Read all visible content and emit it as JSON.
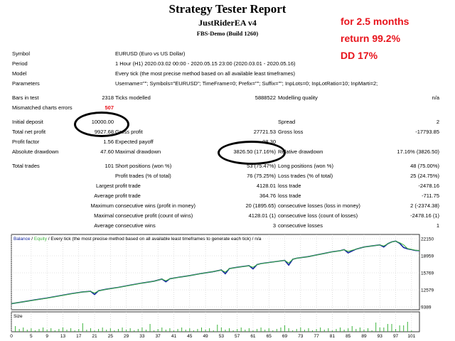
{
  "header": {
    "title": "Strategy Tester Report",
    "ea_name": "JustRiderEA v4",
    "server": "FBS-Demo (Build 1260)"
  },
  "annotation": {
    "line1": "for 2.5 months",
    "line2": "return 99.2%",
    "line3": "DD 17%"
  },
  "info": [
    {
      "label": "Symbol",
      "value": "EURUSD (Euro vs US Dollar)"
    },
    {
      "label": "Period",
      "value": "1 Hour (H1) 2020.03.02 00:00 - 2020.05.15 23:00 (2020.03.01 - 2020.05.16)"
    },
    {
      "label": "Model",
      "value": "Every tick (the most precise method based on all available least timeframes)"
    },
    {
      "label": "Parameters",
      "value": "Username=\"\"; Symbols=\"EURUSD\"; TimeFrame=0; Prefix=\"\"; Suffix=\"\"; InpLots=0; InpLotRatio=10; InpMarti=2;"
    }
  ],
  "bars_row": {
    "bars_label": "Bars in test",
    "bars_value": "2318",
    "ticks_label": "Ticks modelled",
    "ticks_value": "5888522",
    "quality_label": "Modelling quality",
    "quality_value": "n/a"
  },
  "mismatch": {
    "label": "Mismatched charts errors",
    "value": "507",
    "color": "#e8141c"
  },
  "rows": [
    {
      "l1": "Initial deposit",
      "v1": "10000.00",
      "l2": "",
      "v2": "",
      "l3": "Spread",
      "v3": "2"
    },
    {
      "l1": "Total net profit",
      "v1": "9927.68",
      "l2": "Gross profit",
      "v2": "27721.53",
      "l3": "Gross loss",
      "v3": "-17793.85"
    },
    {
      "l1": "Profit factor",
      "v1": "1.56",
      "l2": "Expected payoff",
      "v2": "98.30",
      "l3": "",
      "v3": ""
    },
    {
      "l1": "Absolute drawdown",
      "v1": "47.60",
      "l2": "Maximal drawdown",
      "v2": "3826.50 (17.16%)",
      "l3": "Relative drawdown",
      "v3": "17.16% (3826.50)"
    }
  ],
  "trades": {
    "total_label": "Total trades",
    "total_value": "101",
    "short_label": "Short positions (won %)",
    "short_value": "53 (75.47%)",
    "long_label": "Long positions (won %)",
    "long_value": "48 (75.00%)",
    "profit_trades_label": "Profit trades (% of total)",
    "profit_trades_value": "76 (75.25%)",
    "loss_trades_label": "Loss trades (% of total)",
    "loss_trades_value": "25 (24.75%)"
  },
  "stats": [
    {
      "prefix": "Largest",
      "l1": "profit trade",
      "v1": "4128.01",
      "l2": "loss trade",
      "v2": "-2478.16"
    },
    {
      "prefix": "Average",
      "l1": "profit trade",
      "v1": "364.76",
      "l2": "loss trade",
      "v2": "-711.75"
    },
    {
      "prefix": "Maximum",
      "l1": "consecutive wins (profit in money)",
      "v1": "20 (1895.65)",
      "l2": "consecutive losses (loss in money)",
      "v2": "2 (-2374.38)"
    },
    {
      "prefix": "Maximal",
      "l1": "consecutive profit (count of wins)",
      "v1": "4128.01 (1)",
      "l2": "consecutive loss (count of losses)",
      "v2": "-2478.16 (1)"
    },
    {
      "prefix": "Average",
      "l1": "consecutive wins",
      "v1": "3",
      "l2": "consecutive losses",
      "v2": "1"
    }
  ],
  "chart_data": {
    "type": "line",
    "legend_balance": "Balance",
    "legend_sep": " / ",
    "legend_equity": "Equity",
    "legend_rest": " / Every tick (the most precise method based on all available least timeframes to generate each tick) / n/a",
    "size_label": "Size",
    "colors": {
      "balance": "#1428a0",
      "equity": "#3cb43c",
      "grid": "#c8c8c8",
      "size_bar": "#3cb43c"
    },
    "ylim": [
      9389,
      22150
    ],
    "ytick_labels": [
      "22150",
      "18959",
      "15769",
      "12579",
      "9389"
    ],
    "xlim": [
      0,
      103
    ],
    "xtick_labels": [
      "0",
      "5",
      "9",
      "13",
      "17",
      "21",
      "25",
      "29",
      "33",
      "37",
      "41",
      "45",
      "49",
      "53",
      "57",
      "61",
      "65",
      "69",
      "73",
      "77",
      "81",
      "85",
      "89",
      "93",
      "97",
      "101"
    ],
    "x": [
      0,
      3,
      6,
      9,
      12,
      15,
      18,
      20,
      21,
      22,
      24,
      27,
      30,
      33,
      36,
      38,
      39,
      40,
      42,
      45,
      48,
      51,
      53,
      54,
      55,
      57,
      60,
      61,
      62,
      63,
      65,
      67,
      69,
      70,
      71,
      72,
      75,
      77,
      79,
      81,
      83,
      84,
      85,
      87,
      89,
      91,
      93,
      94,
      95,
      96,
      97,
      98,
      99,
      100,
      101,
      102,
      103
    ],
    "balance": [
      10000,
      10350,
      10700,
      11050,
      11450,
      11850,
      12200,
      12300,
      11700,
      12400,
      12700,
      13050,
      13450,
      13850,
      14200,
      14600,
      14100,
      14650,
      14900,
      15250,
      15650,
      16000,
      16300,
      15600,
      16550,
      16800,
      17100,
      16500,
      17300,
      17500,
      17700,
      17900,
      18100,
      17200,
      18300,
      18500,
      18800,
      19100,
      19400,
      19700,
      19900,
      20100,
      19500,
      20200,
      20600,
      20800,
      21000,
      20600,
      21200,
      21550,
      21700,
      21300,
      20500,
      20250,
      20100,
      19950,
      19920
    ],
    "equity": [
      10000,
      10330,
      10680,
      11020,
      11420,
      11820,
      12180,
      12290,
      12000,
      12390,
      12680,
      13030,
      13430,
      13840,
      14190,
      14590,
      14300,
      14640,
      14890,
      15240,
      15640,
      15990,
      16290,
      15900,
      16540,
      16790,
      17090,
      16800,
      17290,
      17490,
      17690,
      17890,
      18090,
      17600,
      18290,
      18490,
      18790,
      19090,
      19390,
      19690,
      19890,
      20090,
      19800,
      20190,
      20590,
      20790,
      20990,
      20800,
      21190,
      21540,
      21690,
      21400,
      21000,
      20300,
      20150,
      20000,
      19950
    ]
  }
}
